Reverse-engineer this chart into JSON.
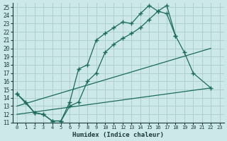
{
  "xlabel": "Humidex (Indice chaleur)",
  "bg_color": "#cce8e8",
  "grid_color": "#aacccc",
  "line_color": "#1a6b5a",
  "xlim": [
    -0.5,
    23.5
  ],
  "ylim": [
    11,
    25.5
  ],
  "xticks": [
    0,
    1,
    2,
    3,
    4,
    5,
    6,
    7,
    8,
    9,
    10,
    11,
    12,
    13,
    14,
    15,
    16,
    17,
    18,
    19,
    20,
    21,
    22,
    23
  ],
  "yticks": [
    11,
    12,
    13,
    14,
    15,
    16,
    17,
    18,
    19,
    20,
    21,
    22,
    23,
    24,
    25
  ],
  "s1x": [
    0,
    1,
    2,
    3,
    4,
    5,
    6,
    7,
    8,
    9,
    10,
    11,
    12,
    13,
    14,
    15,
    16,
    17,
    18
  ],
  "s1y": [
    14.5,
    13.5,
    12.2,
    12.0,
    11.2,
    11.2,
    13.5,
    17.5,
    18.0,
    21.0,
    21.8,
    22.5,
    23.2,
    23.0,
    24.2,
    25.2,
    24.5,
    24.2,
    21.5
  ],
  "s2x": [
    0,
    2,
    3,
    4,
    5,
    6,
    7,
    8,
    9,
    10,
    11,
    12,
    13,
    14,
    15,
    16,
    17,
    18,
    19,
    20,
    22
  ],
  "s2y": [
    14.5,
    12.2,
    12.0,
    11.2,
    11.2,
    13.0,
    13.5,
    16.0,
    17.0,
    19.5,
    20.5,
    21.2,
    21.8,
    22.5,
    23.5,
    24.5,
    25.2,
    21.5,
    19.5,
    17.0,
    15.2
  ],
  "s3x": [
    0,
    22
  ],
  "s3y": [
    13.0,
    20.0
  ],
  "s4x": [
    0,
    22
  ],
  "s4y": [
    12.0,
    15.2
  ]
}
